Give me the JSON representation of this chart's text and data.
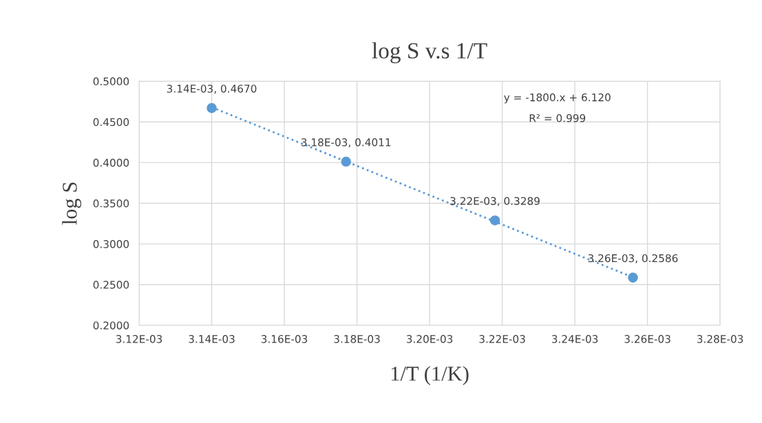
{
  "chart_data": {
    "type": "scatter",
    "title": "log S v.s 1/T",
    "xlabel": "1/T (1/K)",
    "ylabel": "log S",
    "series": [
      {
        "color": "#5b9bd5",
        "x": [
          0.00314,
          0.003177,
          0.003218,
          0.003256
        ],
        "values": [
          0.467,
          0.4011,
          0.3289,
          0.2586
        ],
        "value_labels": [
          "3.14E-03, 0.4670",
          "3.18E-03, 0.4011",
          "3.22E-03, 0.3289",
          "3.26E-03, 0.2586"
        ],
        "marker": "circle"
      },
      {
        "type": "line",
        "color": "#5b9bd5",
        "x": [
          0.00314,
          0.003256
        ],
        "values": [
          0.468,
          0.259
        ],
        "line_style": "dotted",
        "marker": "none"
      }
    ],
    "xlim": [
      0.00312,
      0.00328
    ],
    "xticks": [
      {
        "value": 0.00312,
        "label": "3.12E-03"
      },
      {
        "value": 0.00314,
        "label": "3.14E-03"
      },
      {
        "value": 0.00316,
        "label": "3.16E-03"
      },
      {
        "value": 0.00318,
        "label": "3.18E-03"
      },
      {
        "value": 0.0032,
        "label": "3.20E-03"
      },
      {
        "value": 0.00322,
        "label": "3.22E-03"
      },
      {
        "value": 0.00324,
        "label": "3.24E-03"
      },
      {
        "value": 0.00326,
        "label": "3.26E-03"
      },
      {
        "value": 0.00328,
        "label": "3.28E-03"
      }
    ],
    "ylim": [
      0.2,
      0.5
    ],
    "yticks": [
      {
        "value": 0.2,
        "label": "0.2000"
      },
      {
        "value": 0.25,
        "label": "0.2500"
      },
      {
        "value": 0.3,
        "label": "0.3000"
      },
      {
        "value": 0.35,
        "label": "0.3500"
      },
      {
        "value": 0.4,
        "label": "0.4000"
      },
      {
        "value": 0.45,
        "label": "0.4500"
      },
      {
        "value": 0.5,
        "label": "0.5000"
      }
    ],
    "grid": true,
    "annotations": [
      "y = -1800.x + 6.120",
      "R² = 0.999"
    ]
  }
}
